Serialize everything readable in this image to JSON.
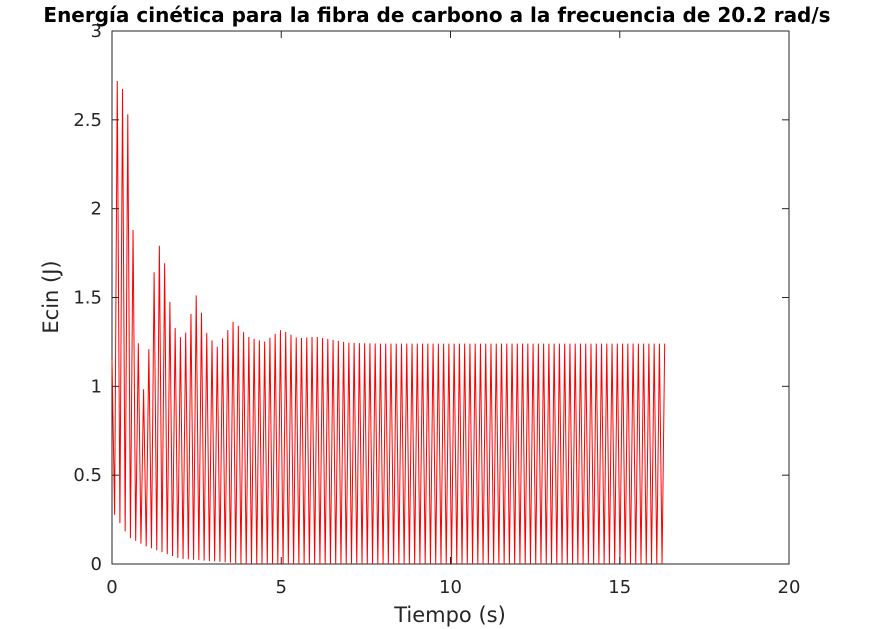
{
  "chart_data": {
    "type": "line",
    "title": "Energía cinética para la fibra de carbono a la frecuencia de 20.2 rad/s",
    "xlabel": "Tiempo (s)",
    "ylabel": "Ecin (J)",
    "xlim": [
      0,
      20
    ],
    "ylim": [
      0,
      3
    ],
    "x_ticks": [
      0,
      5,
      10,
      15,
      20
    ],
    "y_ticks": [
      0,
      0.5,
      1,
      1.5,
      2,
      2.5,
      3
    ],
    "x_tick_labels": [
      "0",
      "5",
      "10",
      "15",
      "20"
    ],
    "y_tick_labels": [
      "0",
      "0.5",
      "1",
      "1.5",
      "2",
      "2.5",
      "3"
    ],
    "grid": false,
    "legend": "none",
    "line_color": "#ff0000",
    "series": [
      {
        "oscillation_period_s": 0.1555,
        "x_end": 16.4,
        "peaks": [
          {
            "t": 0.05,
            "peak": 1.15
          },
          {
            "t": 0.15,
            "peak": 2.72
          },
          {
            "t": 0.3,
            "peak": 2.68
          },
          {
            "t": 0.45,
            "peak": 2.6
          },
          {
            "t": 0.6,
            "peak": 1.97
          },
          {
            "t": 0.8,
            "peak": 1.15
          },
          {
            "t": 1.0,
            "peak": 0.9
          },
          {
            "t": 1.2,
            "peak": 1.6
          },
          {
            "t": 1.45,
            "peak": 1.84
          },
          {
            "t": 1.8,
            "peak": 1.35
          },
          {
            "t": 2.1,
            "peak": 1.25
          },
          {
            "t": 2.5,
            "peak": 1.52
          },
          {
            "t": 2.8,
            "peak": 1.3
          },
          {
            "t": 3.1,
            "peak": 1.22
          },
          {
            "t": 3.6,
            "peak": 1.37
          },
          {
            "t": 4.0,
            "peak": 1.28
          },
          {
            "t": 4.5,
            "peak": 1.25
          },
          {
            "t": 5.0,
            "peak": 1.32
          },
          {
            "t": 5.5,
            "peak": 1.27
          },
          {
            "t": 6.0,
            "peak": 1.28
          },
          {
            "t": 7.0,
            "peak": 1.245
          },
          {
            "t": 8.0,
            "peak": 1.24
          },
          {
            "t": 16.4,
            "peak": 1.24
          }
        ],
        "troughs": [
          {
            "t": 0.0,
            "trough": 0.3
          },
          {
            "t": 0.5,
            "trough": 0.15
          },
          {
            "t": 1.0,
            "trough": 0.1
          },
          {
            "t": 2.0,
            "trough": 0.03
          },
          {
            "t": 4.0,
            "trough": 0.0
          },
          {
            "t": 16.4,
            "trough": 0.0
          }
        ]
      }
    ]
  }
}
